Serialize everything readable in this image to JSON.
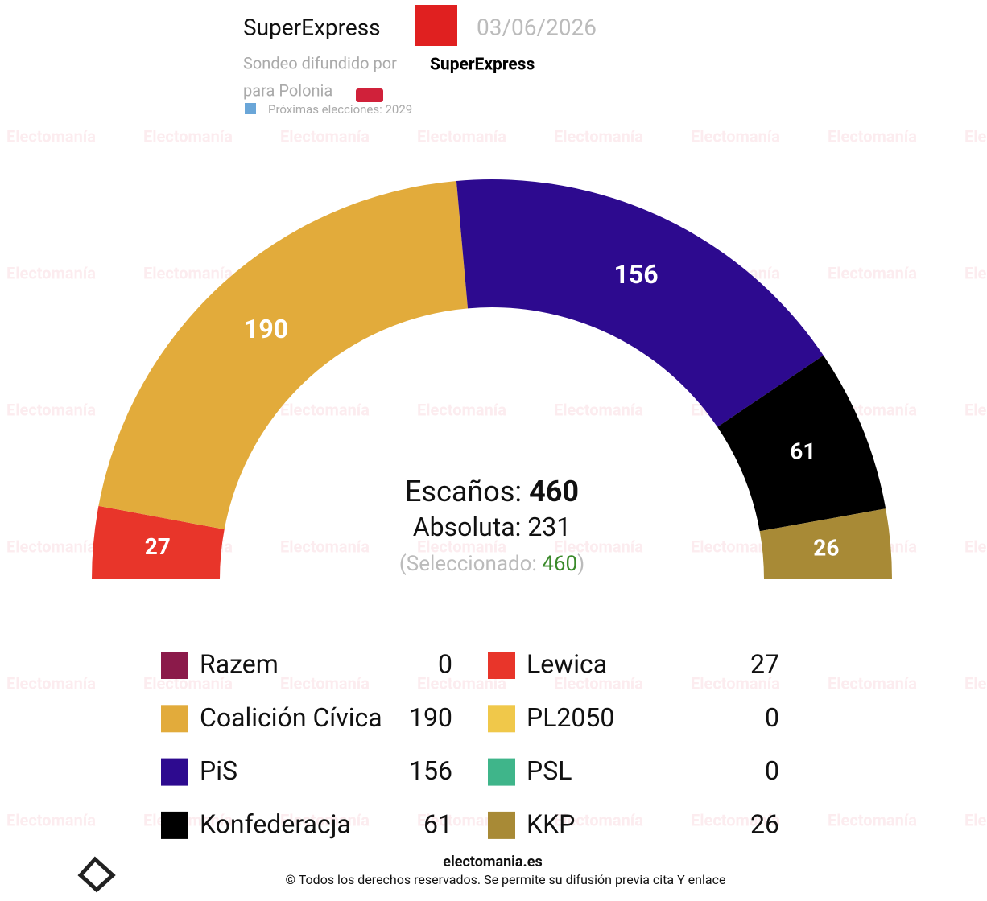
{
  "header": {
    "pollster": "SuperExpress",
    "date": "03/06/2026",
    "source_prefix": "Sondeo difundido por",
    "source": "SuperExpress",
    "region": "para Polonia",
    "next_election": "Próximas elecciones: 2029",
    "watermark": "Electomanía"
  },
  "chart_data": {
    "type": "hemicycle",
    "series": [
      {
        "name": "Razem",
        "color": "#8b1a4a",
        "values": [
          0
        ]
      },
      {
        "name": "Lewica",
        "color": "#e8352a",
        "values": [
          27
        ]
      },
      {
        "name": "Coalición Cívica",
        "color": "#e2ab3b",
        "values": [
          190
        ]
      },
      {
        "name": "PL2050",
        "color": "#f0c84a",
        "values": [
          0
        ]
      },
      {
        "name": "PiS",
        "color": "#2d0a8f",
        "values": [
          156
        ]
      },
      {
        "name": "PSL",
        "color": "#3fb58a",
        "values": [
          0
        ]
      },
      {
        "name": "Konfederacja",
        "color": "#000000",
        "values": [
          61
        ]
      },
      {
        "name": "KKP",
        "color": "#a88a36",
        "values": [
          26
        ]
      }
    ],
    "seats_label": "Escaños:",
    "seats": 460,
    "majority_label": "Absoluta:",
    "majority": 231,
    "selected_prefix": "(Seleccionado:",
    "selected": 460,
    "selected_suffix": ")"
  },
  "footer": {
    "site": "electomania.es",
    "rights": "© Todos los derechos reservados. Se permite su difusión previa cita Y enlace"
  }
}
